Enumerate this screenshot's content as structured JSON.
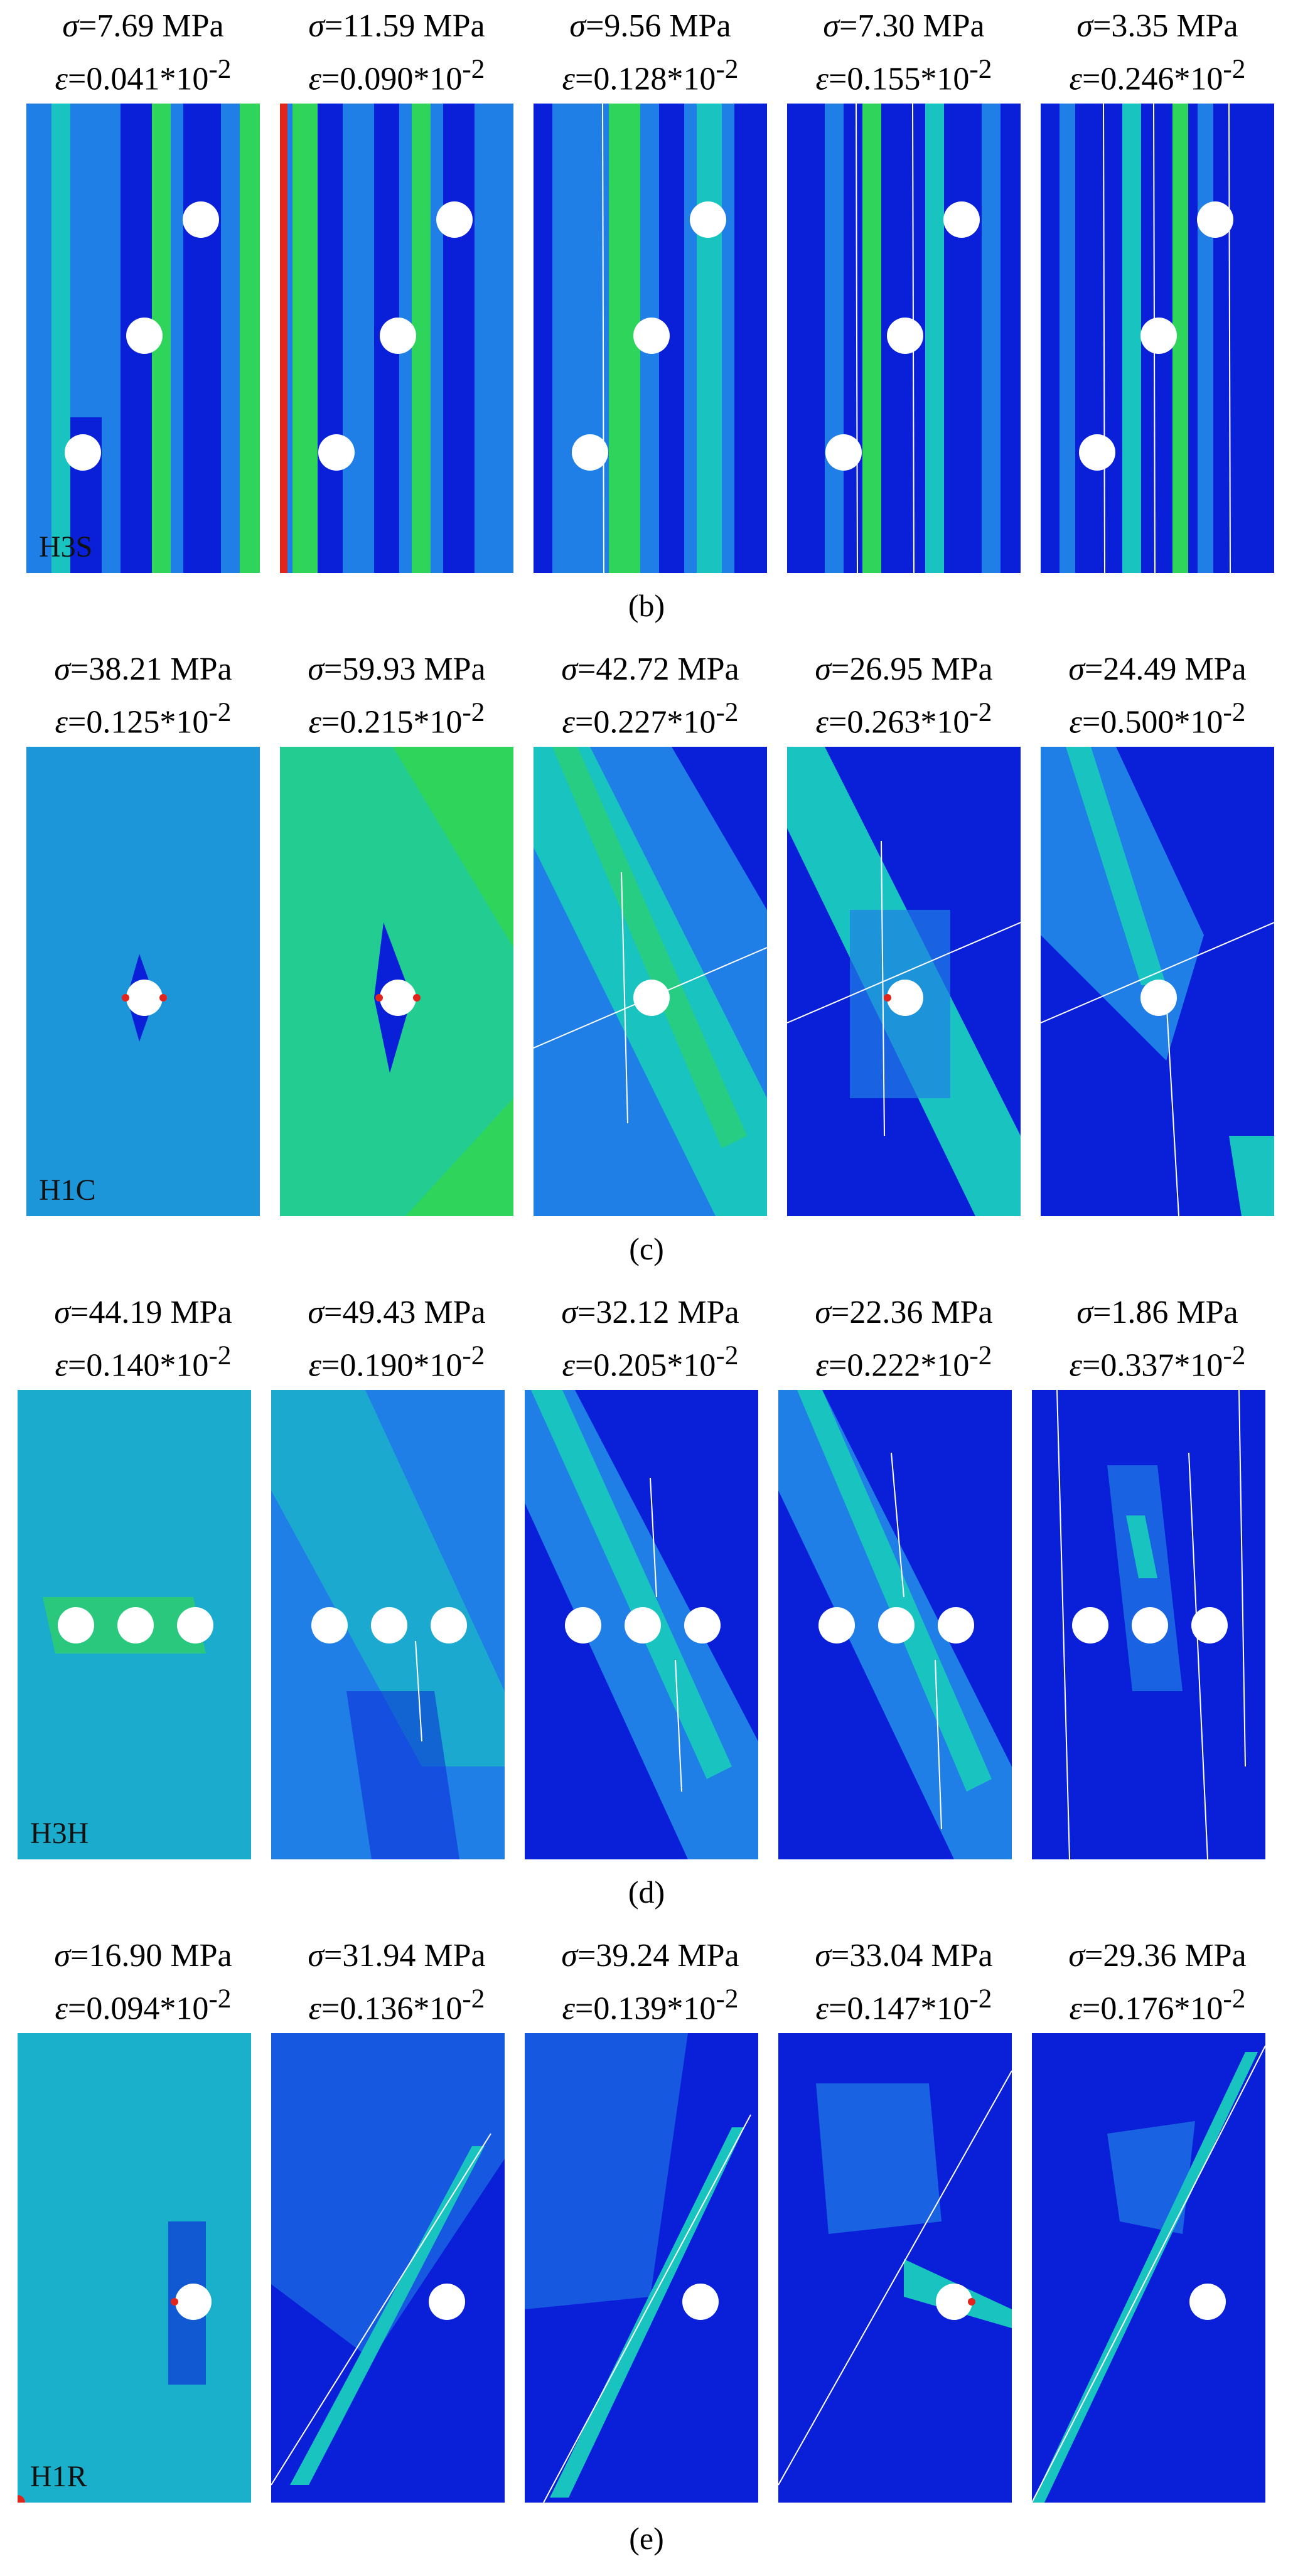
{
  "groups": [
    {
      "caption": "(b)",
      "specimen": "H3S",
      "panels": [
        {
          "stress": "=7.69 MPa",
          "strain": "=0.041*10",
          "exp": "-2"
        },
        {
          "stress": "=11.59 MPa",
          "strain": "=0.090*10",
          "exp": "-2"
        },
        {
          "stress": "=9.56 MPa",
          "strain": "=0.128*10",
          "exp": "-2"
        },
        {
          "stress": "=7.30 MPa",
          "strain": "=0.155*10",
          "exp": "-2"
        },
        {
          "stress": "=3.35 MPa",
          "strain": "=0.246*10",
          "exp": "-2"
        }
      ]
    },
    {
      "caption": "(c)",
      "specimen": "H1C",
      "panels": [
        {
          "stress": "=38.21 MPa",
          "strain": "=0.125*10",
          "exp": "-2"
        },
        {
          "stress": "=59.93 MPa",
          "strain": "=0.215*10",
          "exp": "-2"
        },
        {
          "stress": "=42.72 MPa",
          "strain": "=0.227*10",
          "exp": "-2"
        },
        {
          "stress": "=26.95 MPa",
          "strain": "=0.263*10",
          "exp": "-2"
        },
        {
          "stress": "=24.49 MPa",
          "strain": "=0.500*10",
          "exp": "-2"
        }
      ]
    },
    {
      "caption": "(d)",
      "specimen": "H3H",
      "panels": [
        {
          "stress": "=44.19 MPa",
          "strain": "=0.140*10",
          "exp": "-2"
        },
        {
          "stress": "=49.43 MPa",
          "strain": "=0.190*10",
          "exp": "-2"
        },
        {
          "stress": "=32.12 MPa",
          "strain": "=0.205*10",
          "exp": "-2"
        },
        {
          "stress": "=22.36 MPa",
          "strain": "=0.222*10",
          "exp": "-2"
        },
        {
          "stress": "=1.86 MPa",
          "strain": "=0.337*10",
          "exp": "-2"
        }
      ]
    },
    {
      "caption": "(e)",
      "specimen": "H1R",
      "panels": [
        {
          "stress": "=16.90 MPa",
          "strain": "=0.094*10",
          "exp": "-2"
        },
        {
          "stress": "=31.94 MPa",
          "strain": "=0.136*10",
          "exp": "-2"
        },
        {
          "stress": "=39.24 MPa",
          "strain": "=0.139*10",
          "exp": "-2"
        },
        {
          "stress": "=33.04 MPa",
          "strain": "=0.147*10",
          "exp": "-2"
        },
        {
          "stress": "=29.36 MPa",
          "strain": "=0.176*10",
          "exp": "-2"
        }
      ]
    }
  ],
  "symbols": {
    "stress": "σ",
    "strain": "ε"
  },
  "colors": {
    "dark_blue": "#0a1fd8",
    "mid_blue": "#1f7fe6",
    "cyan": "#19c4c0",
    "green": "#2fd45a",
    "yellow": "#e9e21a",
    "red": "#e0261c",
    "hole": "#ffffff"
  }
}
